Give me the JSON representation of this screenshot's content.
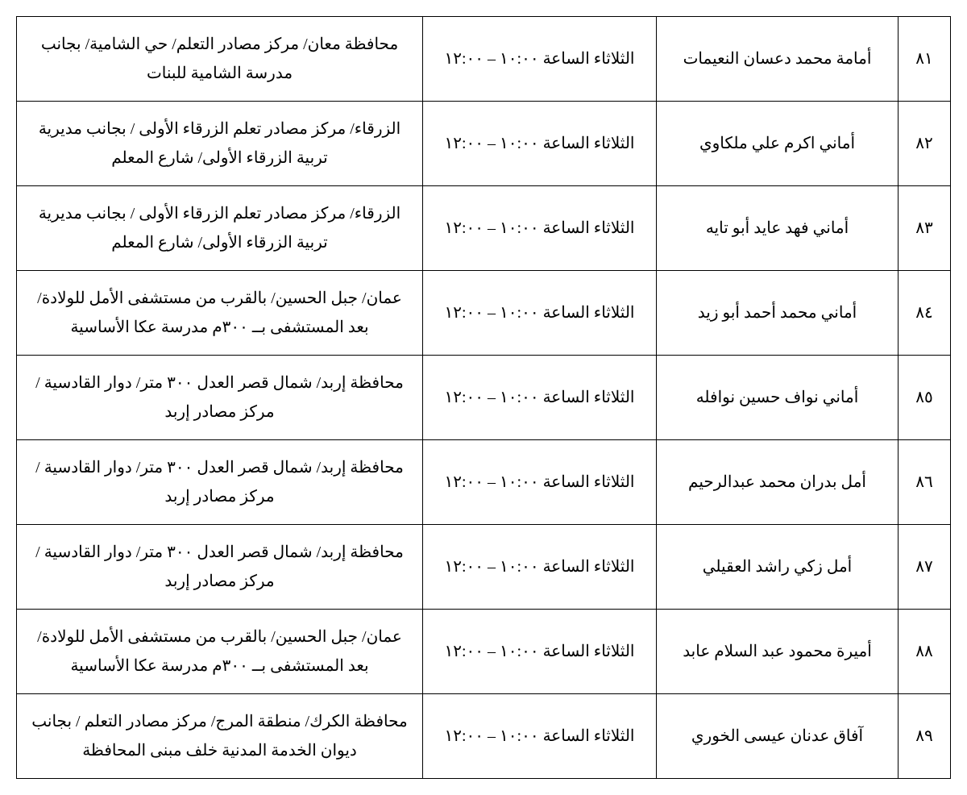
{
  "table": {
    "type": "table",
    "columns": [
      "index",
      "name",
      "time",
      "location"
    ],
    "column_widths": {
      "index": 65,
      "name": 300,
      "time": 290,
      "location": "auto"
    },
    "border_color": "#000000",
    "background_color": "#ffffff",
    "text_color": "#000000",
    "font_size": 20,
    "cell_padding": 16,
    "line_height": 1.8,
    "text_align": "center",
    "rows": [
      {
        "index": "٨١",
        "name": "أمامة محمد دعسان النعيمات",
        "time": "الثلاثاء  الساعة ١٠:٠٠ – ١٢:٠٠",
        "location": "محافظة معان/ مركز مصادر التعلم/ حي الشامية/  بجانب مدرسة الشامية للبنات"
      },
      {
        "index": "٨٢",
        "name": "أماني اكرم علي ملكاوي",
        "time": "الثلاثاء  الساعة ١٠:٠٠ – ١٢:٠٠",
        "location": "الزرقاء/ مركز مصادر تعلم الزرقاء الأولى / بجانب مديرية تربية الزرقاء الأولى/  شارع المعلم"
      },
      {
        "index": "٨٣",
        "name": "أماني فهد عايد أبو تايه",
        "time": "الثلاثاء  الساعة ١٠:٠٠ – ١٢:٠٠",
        "location": "الزرقاء/ مركز مصادر تعلم الزرقاء الأولى / بجانب مديرية تربية الزرقاء الأولى/  شارع المعلم"
      },
      {
        "index": "٨٤",
        "name": "أماني محمد أحمد أبو زيد",
        "time": "الثلاثاء  الساعة ١٠:٠٠ – ١٢:٠٠",
        "location": "عمان/  جبل الحسين/ بالقرب من مستشفى الأمل للولادة/  بعد المستشفى بــ ٣٠٠م مدرسة عكا الأساسية"
      },
      {
        "index": "٨٥",
        "name": "أماني نواف حسين نوافله",
        "time": "الثلاثاء  الساعة ١٠:٠٠ – ١٢:٠٠",
        "location": "محافظة إربد/  شمال قصر العدل ٣٠٠ متر/  دوار القادسية /  مركز مصادر إربد"
      },
      {
        "index": "٨٦",
        "name": "أمل بدران محمد عبدالرحيم",
        "time": "الثلاثاء  الساعة ١٠:٠٠ – ١٢:٠٠",
        "location": "محافظة إربد/  شمال قصر العدل ٣٠٠ متر/  دوار القادسية /  مركز مصادر إربد"
      },
      {
        "index": "٨٧",
        "name": "أمل زكي راشد العقيلي",
        "time": "الثلاثاء  الساعة ١٠:٠٠ – ١٢:٠٠",
        "location": "محافظة إربد/  شمال قصر العدل ٣٠٠ متر/  دوار القادسية /  مركز مصادر إربد"
      },
      {
        "index": "٨٨",
        "name": "أميرة محمود عبد السلام عابد",
        "time": "الثلاثاء  الساعة ١٠:٠٠ – ١٢:٠٠",
        "location": "عمان/  جبل الحسين/ بالقرب من مستشفى الأمل للولادة/  بعد المستشفى بــ ٣٠٠م مدرسة عكا الأساسية"
      },
      {
        "index": "٨٩",
        "name": "آفاق عدنان عيسى الخوري",
        "time": "الثلاثاء  الساعة ١٠:٠٠ – ١٢:٠٠",
        "location": "محافظة الكرك/  منطقة المرج/ مركز مصادر التعلم / بجانب ديوان الخدمة المدنية خلف مبنى المحافظة"
      }
    ]
  }
}
